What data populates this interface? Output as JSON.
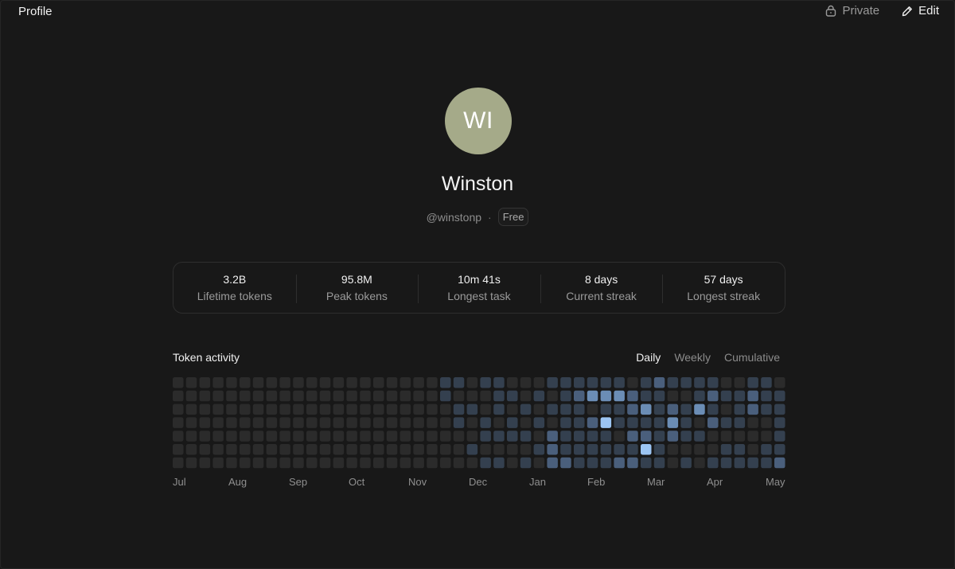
{
  "header": {
    "title": "Profile",
    "private_label": "Private",
    "edit_label": "Edit",
    "private_icon": "lock-icon",
    "edit_icon": "pencil-icon"
  },
  "profile": {
    "initials": "WI",
    "avatar_color": "#a5aa89",
    "name": "Winston",
    "handle": "@winstonp",
    "separator": "·",
    "plan": "Free"
  },
  "stats": [
    {
      "value": "3.2B",
      "label": "Lifetime tokens"
    },
    {
      "value": "95.8M",
      "label": "Peak tokens"
    },
    {
      "value": "10m 41s",
      "label": "Longest task"
    },
    {
      "value": "8 days",
      "label": "Current streak"
    },
    {
      "value": "57 days",
      "label": "Longest streak"
    }
  ],
  "activity": {
    "title": "Token activity",
    "tabs": [
      {
        "label": "Daily",
        "active": true
      },
      {
        "label": "Weekly",
        "active": false
      },
      {
        "label": "Cumulative",
        "active": false
      }
    ],
    "months": [
      "Jul",
      "Aug",
      "Sep",
      "Oct",
      "Nov",
      "Dec",
      "Jan",
      "Feb",
      "Mar",
      "Apr",
      "May"
    ],
    "level_colors": [
      "#2b2b2b",
      "#34404f",
      "#4a5f7c",
      "#6b8db5",
      "#9cc5f3"
    ],
    "grid": [
      "0000000000000000000011011000111111012111100110",
      "0000000000000000000010001101012333211001211211",
      "0000000000000000000001101010111011231213101211",
      "0000000000000000000001010101011241111310211001",
      "0000000000000000000000011110211110221211000001",
      "0000000000000000000000100001211111141000011011",
      "0000000000000000000000011010221112211010111112"
    ]
  }
}
